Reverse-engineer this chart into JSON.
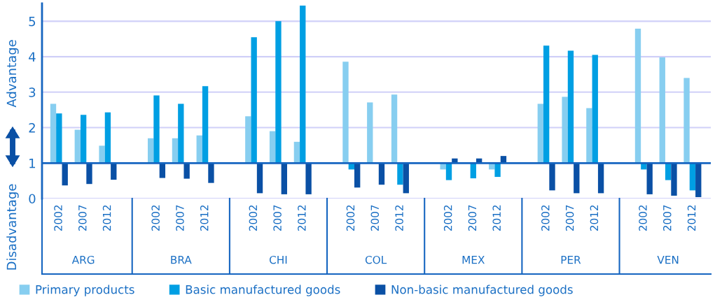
{
  "chart_data": {
    "type": "bar",
    "categories": [
      "2002",
      "2007",
      "2012",
      null,
      "2002",
      "2007",
      "2012",
      null,
      "2002",
      "2007",
      "2012",
      null,
      "2002",
      "2007",
      "2012",
      null,
      "2002",
      "2007",
      "2012",
      null,
      "2002",
      "2007",
      "2012",
      null,
      "2002",
      "2007",
      "2012"
    ],
    "series": [
      {
        "name": "Primary products",
        "color": "#87cef0",
        "base": [
          1,
          1,
          1,
          null,
          1,
          1,
          1,
          null,
          1,
          1,
          1,
          null,
          1,
          1,
          1,
          null,
          1,
          null,
          1,
          null,
          1,
          1,
          1,
          null,
          1,
          1,
          1
        ],
        "values": [
          1.67,
          0.94,
          0.49,
          null,
          0.7,
          0.7,
          0.78,
          null,
          1.32,
          0.9,
          0.6,
          null,
          2.86,
          1.71,
          1.93,
          null,
          -0.18,
          null,
          -0.18,
          null,
          1.67,
          1.87,
          1.55,
          null,
          3.79,
          2.98,
          2.4
        ]
      },
      {
        "name": "Basic manufactured goods",
        "color": "#009fe3",
        "base": [
          1,
          1,
          1,
          null,
          1,
          1,
          1,
          null,
          1,
          1,
          1,
          null,
          1,
          null,
          1,
          null,
          1,
          1,
          1,
          null,
          1,
          1,
          1,
          null,
          1,
          1,
          1
        ],
        "values": [
          1.4,
          1.36,
          1.43,
          null,
          1.91,
          1.67,
          2.17,
          null,
          3.55,
          4.0,
          4.44,
          null,
          -0.18,
          null,
          -0.61,
          null,
          -0.48,
          -0.43,
          -0.39,
          null,
          3.31,
          3.17,
          3.05,
          null,
          -0.18,
          -0.48,
          -0.77
        ]
      },
      {
        "name": "Non-basic manufactured goods",
        "color": "#0a50a5",
        "base": [
          1,
          1,
          1,
          null,
          1,
          1,
          1,
          null,
          1,
          1,
          1,
          null,
          1,
          1,
          1,
          null,
          1,
          1,
          1,
          null,
          1,
          1,
          1,
          null,
          1,
          1,
          1
        ],
        "values": [
          -0.63,
          -0.59,
          -0.47,
          null,
          -0.42,
          -0.44,
          -0.56,
          null,
          -0.85,
          -0.88,
          -0.88,
          null,
          -0.69,
          -0.61,
          -0.85,
          null,
          0.13,
          0.13,
          0.2,
          null,
          -0.77,
          -0.85,
          -0.85,
          null,
          -0.88,
          -0.92,
          -0.96
        ]
      }
    ],
    "ylim": [
      0,
      5.5
    ],
    "yticks": [
      0,
      1,
      2,
      3,
      4,
      5
    ],
    "ref_lines": [
      {
        "axis": "y",
        "value": 1,
        "color": "#1565c0"
      }
    ],
    "annotations": [
      "Advantage",
      "Disadvantage",
      "ARG",
      "BRA",
      "CHI",
      "COL",
      "MEX",
      "PER",
      "VEN"
    ],
    "grid": "y",
    "legend": "bottom"
  }
}
